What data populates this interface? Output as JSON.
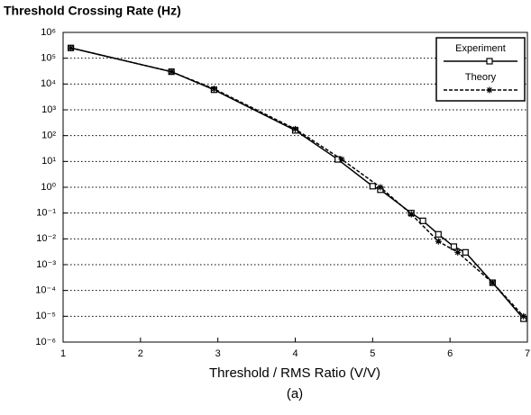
{
  "chart_data": {
    "type": "line",
    "title": "Threshold Crossing Rate (Hz)",
    "x_label": "Threshold / RMS Ratio (V/V)",
    "caption": "(a)",
    "xlim": [
      1,
      7
    ],
    "xticks": [
      1,
      2,
      3,
      4,
      5,
      6,
      7
    ],
    "ylim": [
      1e-06,
      1000000
    ],
    "log_y": true,
    "yticks": [
      {
        "value": 1000000,
        "label": "10⁶"
      },
      {
        "value": 100000,
        "label": "10⁵"
      },
      {
        "value": 10000,
        "label": "10⁴"
      },
      {
        "value": 1000,
        "label": "10³"
      },
      {
        "value": 100,
        "label": "10²"
      },
      {
        "value": 10,
        "label": "10¹"
      },
      {
        "value": 1,
        "label": "10⁰"
      },
      {
        "value": 0.1,
        "label": "10⁻¹"
      },
      {
        "value": 0.01,
        "label": "10⁻²"
      },
      {
        "value": 0.001,
        "label": "10⁻³"
      },
      {
        "value": 0.0001,
        "label": "10⁻⁴"
      },
      {
        "value": 1e-05,
        "label": "10⁻⁵"
      },
      {
        "value": 1e-06,
        "label": "10⁻⁶"
      }
    ],
    "grid": true,
    "legend": "upper right",
    "series": [
      {
        "name": "Experiment",
        "color": "#000000",
        "x": [
          1.1,
          2.4,
          2.95,
          4.0,
          4.55,
          5.0,
          5.1,
          5.5,
          5.65,
          5.85,
          6.05,
          6.2,
          6.55,
          6.95
        ],
        "values": [
          250000,
          30000,
          6000,
          160,
          12,
          1.1,
          0.8,
          0.1,
          0.05,
          0.015,
          0.005,
          0.003,
          0.0002,
          8e-06
        ]
      },
      {
        "name": "Theory",
        "color": "#000000",
        "x": [
          1.1,
          2.4,
          2.95,
          4.0,
          4.6,
          5.1,
          5.5,
          5.85,
          6.1,
          6.55,
          6.95
        ],
        "values": [
          250000,
          30000,
          6500,
          180,
          12,
          1.0,
          0.09,
          0.008,
          0.003,
          0.0002,
          1e-05
        ]
      }
    ]
  }
}
